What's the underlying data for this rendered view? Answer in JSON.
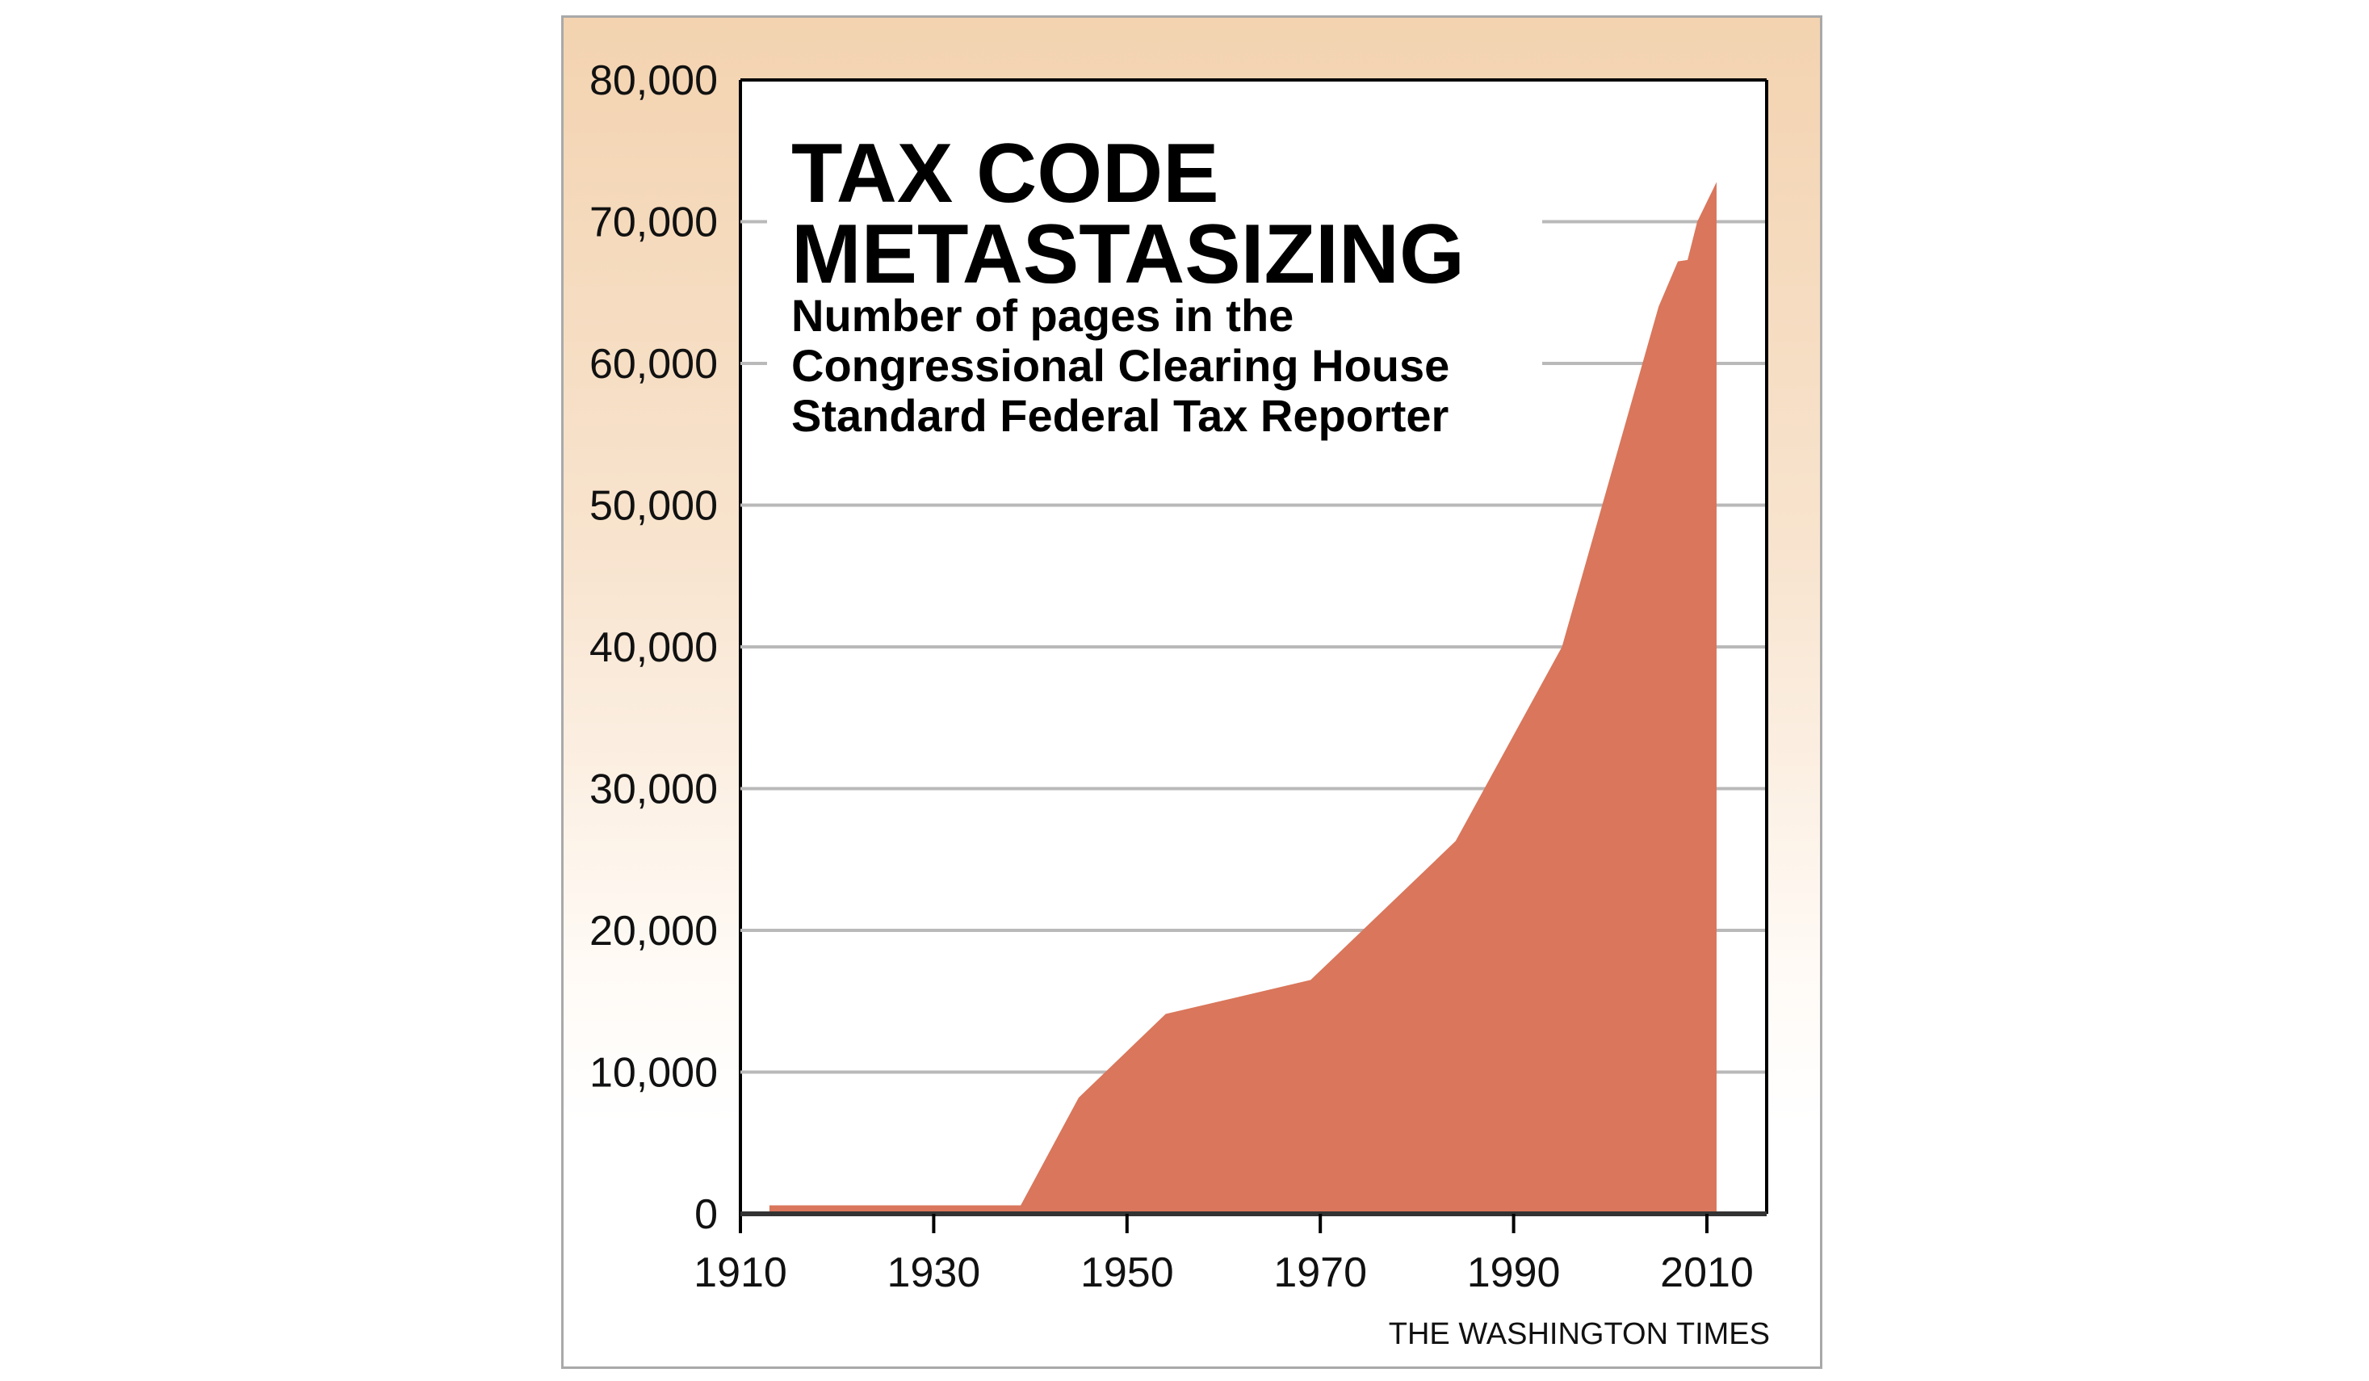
{
  "chart_data": {
    "type": "area",
    "title": "TAX CODE METASTASIZING",
    "title_lines": [
      "TAX CODE",
      "METASTASIZING"
    ],
    "subtitle": "Number of pages in the Congressional Clearing House Standard Federal Tax Reporter",
    "subtitle_lines": [
      "Number of pages in the",
      "Congressional Clearing House",
      "Standard Federal Tax Reporter"
    ],
    "xlabel": "",
    "ylabel": "",
    "x": [
      1913,
      1939,
      1945,
      1954,
      1969,
      1984,
      1995,
      2000,
      2005,
      2007,
      2008,
      2009,
      2011
    ],
    "values": [
      600,
      600,
      8200,
      14100,
      16500,
      26300,
      40000,
      52000,
      64000,
      67200,
      67300,
      70000,
      72800
    ],
    "xlim": [
      1910,
      2016
    ],
    "ylim": [
      0,
      80000
    ],
    "xticks": [
      1910,
      1930,
      1950,
      1970,
      1990,
      2010
    ],
    "xtick_labels": [
      "1910",
      "1930",
      "1950",
      "1970",
      "1990",
      "2010"
    ],
    "yticks": [
      0,
      10000,
      20000,
      30000,
      40000,
      50000,
      60000,
      70000,
      80000
    ],
    "ytick_labels": [
      "0",
      "10,000",
      "20,000",
      "30,000",
      "40,000",
      "50,000",
      "60,000",
      "70,000",
      "80,000"
    ],
    "grid": true,
    "fill_color": "#d9765b",
    "grid_color": "#b9b9b9",
    "source": "THE WASHINGTON TIMES"
  }
}
